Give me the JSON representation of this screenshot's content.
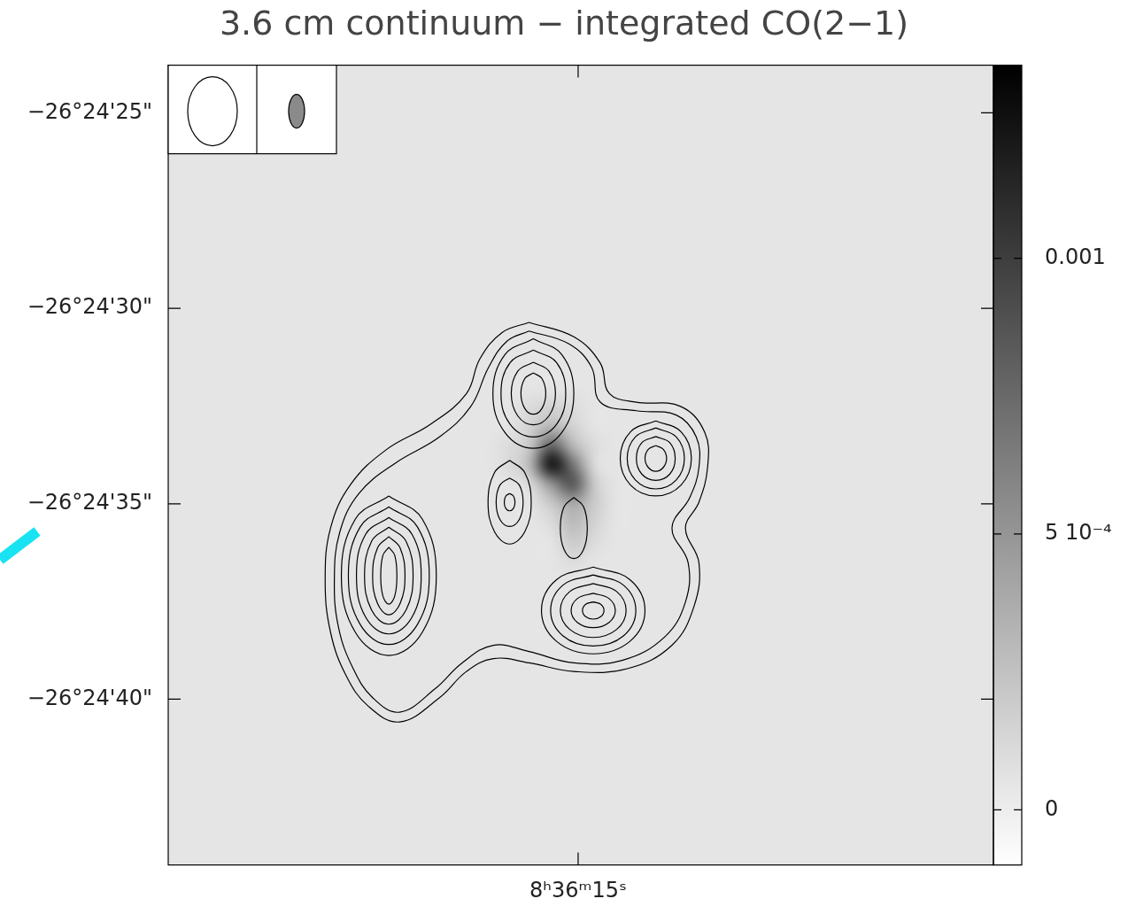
{
  "chart_data": {
    "type": "contour_image",
    "title": "3.6 cm continuum − integrated CO(2−1)",
    "xlim": [
      14.23,
      15.76
    ],
    "ylim": [
      23.78,
      44.24
    ],
    "xticks": [
      {
        "value": 15,
        "label": "8ʰ36ᵐ15ˢ"
      }
    ],
    "yticks": [
      {
        "value": 25,
        "label": "−26°24'25\""
      },
      {
        "value": 30,
        "label": "−26°24'30\""
      },
      {
        "value": 35,
        "label": "−26°24'35\""
      },
      {
        "value": 40,
        "label": "−26°24'40\""
      }
    ],
    "grid": false,
    "image": {
      "x": [
        15.17,
        15.13,
        15.09,
        15.05,
        15.01,
        14.97,
        14.93,
        14.89
      ],
      "y": [
        32.0,
        32.5,
        33.0,
        33.5,
        34.0,
        34.5,
        35.0,
        35.5,
        36.0,
        36.5,
        37.0
      ],
      "background": 5e-05,
      "values": [
        [
          5e-05,
          5e-05,
          5e-05,
          5e-05,
          5e-05,
          5e-05,
          5e-05,
          5e-05
        ],
        [
          5e-05,
          5e-05,
          0.0001,
          0.00015,
          0.0001,
          5e-05,
          5e-05,
          5e-05
        ],
        [
          5e-05,
          5e-05,
          0.00015,
          0.0003,
          0.00015,
          5e-05,
          5e-05,
          5e-05
        ],
        [
          5e-05,
          0.0001,
          0.0002,
          0.0008,
          0.0003,
          0.0001,
          5e-05,
          5e-05
        ],
        [
          5e-05,
          0.0001,
          0.0003,
          0.0013,
          0.0007,
          0.0001,
          5e-05,
          5e-05
        ],
        [
          5e-05,
          5e-05,
          0.0001,
          0.0005,
          0.0009,
          0.0002,
          5e-05,
          5e-05
        ],
        [
          5e-05,
          5e-05,
          5e-05,
          0.0002,
          0.0004,
          0.0002,
          5e-05,
          5e-05
        ],
        [
          5e-05,
          5e-05,
          5e-05,
          0.0001,
          0.0003,
          0.00015,
          5e-05,
          5e-05
        ],
        [
          5e-05,
          5e-05,
          5e-05,
          5e-05,
          0.0002,
          0.0001,
          5e-05,
          5e-05
        ],
        [
          5e-05,
          5e-05,
          5e-05,
          5e-05,
          0.0001,
          5e-05,
          5e-05,
          5e-05
        ],
        [
          5e-05,
          5e-05,
          5e-05,
          5e-05,
          5e-05,
          5e-05,
          5e-05,
          5e-05
        ]
      ],
      "colorbar": {
        "range": [
          -0.0001,
          0.00135
        ],
        "ticks": [
          0,
          {
            "value": 0.0005,
            "label": "5 10⁻⁴"
          },
          0.001
        ]
      }
    },
    "contours": [
      [
        [
          15.091,
          30.36
        ],
        [
          15.008,
          30.73
        ],
        [
          14.959,
          31.4
        ],
        [
          14.942,
          32.18
        ],
        [
          14.892,
          32.4
        ],
        [
          14.81,
          32.51
        ],
        [
          14.765,
          33.18
        ],
        [
          14.76,
          34.07
        ],
        [
          14.776,
          34.96
        ],
        [
          14.801,
          35.62
        ],
        [
          14.776,
          36.51
        ],
        [
          14.785,
          37.62
        ],
        [
          14.826,
          38.62
        ],
        [
          14.909,
          39.22
        ],
        [
          15.008,
          39.29
        ],
        [
          15.091,
          39.07
        ],
        [
          15.157,
          38.96
        ],
        [
          15.207,
          39.29
        ],
        [
          15.257,
          39.96
        ],
        [
          15.331,
          40.58
        ],
        [
          15.389,
          40.18
        ],
        [
          15.43,
          39.4
        ],
        [
          15.459,
          38.29
        ],
        [
          15.469,
          36.96
        ],
        [
          15.459,
          35.62
        ],
        [
          15.422,
          34.51
        ],
        [
          15.356,
          33.62
        ],
        [
          15.273,
          32.96
        ],
        [
          15.207,
          32.18
        ],
        [
          15.182,
          31.29
        ],
        [
          15.141,
          30.62
        ]
      ],
      [
        [
          15.091,
          30.58
        ],
        [
          15.017,
          30.91
        ],
        [
          14.975,
          31.51
        ],
        [
          14.959,
          32.4
        ],
        [
          14.892,
          32.62
        ],
        [
          14.818,
          32.73
        ],
        [
          14.781,
          33.29
        ],
        [
          14.776,
          34.07
        ],
        [
          14.793,
          34.84
        ],
        [
          14.826,
          35.62
        ],
        [
          14.796,
          36.51
        ],
        [
          14.801,
          37.51
        ],
        [
          14.839,
          38.4
        ],
        [
          14.917,
          39.0
        ],
        [
          15.008,
          39.07
        ],
        [
          15.091,
          38.78
        ],
        [
          15.157,
          38.62
        ],
        [
          15.215,
          39.07
        ],
        [
          15.265,
          39.73
        ],
        [
          15.331,
          40.33
        ],
        [
          15.381,
          39.96
        ],
        [
          15.417,
          39.22
        ],
        [
          15.444,
          38.18
        ],
        [
          15.452,
          36.96
        ],
        [
          15.442,
          35.73
        ],
        [
          15.406,
          34.73
        ],
        [
          15.339,
          33.96
        ],
        [
          15.257,
          33.29
        ],
        [
          15.199,
          32.51
        ],
        [
          15.166,
          31.51
        ],
        [
          15.132,
          30.84
        ]
      ],
      [
        [
          15.351,
          36.11
        ],
        [
          15.34,
          36.32
        ],
        [
          15.336,
          36.84
        ],
        [
          15.34,
          37.36
        ],
        [
          15.351,
          37.57
        ],
        [
          15.362,
          37.36
        ],
        [
          15.366,
          36.84
        ],
        [
          15.362,
          36.32
        ]
      ],
      [
        [
          15.351,
          35.84
        ],
        [
          15.33,
          36.13
        ],
        [
          15.321,
          36.84
        ],
        [
          15.33,
          37.55
        ],
        [
          15.351,
          37.84
        ],
        [
          15.372,
          37.55
        ],
        [
          15.381,
          36.84
        ],
        [
          15.372,
          36.13
        ]
      ],
      [
        [
          15.351,
          35.6
        ],
        [
          15.319,
          35.96
        ],
        [
          15.306,
          36.84
        ],
        [
          15.319,
          37.72
        ],
        [
          15.351,
          38.08
        ],
        [
          15.383,
          37.72
        ],
        [
          15.396,
          36.84
        ],
        [
          15.383,
          35.96
        ]
      ],
      [
        [
          15.351,
          35.35
        ],
        [
          15.308,
          35.78
        ],
        [
          15.291,
          36.84
        ],
        [
          15.308,
          37.9
        ],
        [
          15.351,
          38.33
        ],
        [
          15.394,
          37.9
        ],
        [
          15.411,
          36.84
        ],
        [
          15.394,
          35.78
        ]
      ],
      [
        [
          15.351,
          35.08
        ],
        [
          15.298,
          35.59
        ],
        [
          15.276,
          36.84
        ],
        [
          15.298,
          38.09
        ],
        [
          15.351,
          38.6
        ],
        [
          15.404,
          38.09
        ],
        [
          15.426,
          36.84
        ],
        [
          15.404,
          35.59
        ]
      ],
      [
        [
          15.351,
          34.8
        ],
        [
          15.289,
          35.39
        ],
        [
          15.263,
          36.84
        ],
        [
          15.289,
          38.29
        ],
        [
          15.351,
          38.88
        ],
        [
          15.413,
          38.29
        ],
        [
          15.439,
          36.84
        ],
        [
          15.413,
          35.39
        ]
      ],
      [
        [
          15.083,
          31.65
        ],
        [
          15.067,
          31.8
        ],
        [
          15.06,
          32.18
        ],
        [
          15.067,
          32.56
        ],
        [
          15.083,
          32.71
        ],
        [
          15.099,
          32.56
        ],
        [
          15.106,
          32.18
        ],
        [
          15.099,
          31.8
        ]
      ],
      [
        [
          15.083,
          31.38
        ],
        [
          15.054,
          31.61
        ],
        [
          15.042,
          32.18
        ],
        [
          15.054,
          32.75
        ],
        [
          15.083,
          32.98
        ],
        [
          15.112,
          32.75
        ],
        [
          15.124,
          32.18
        ],
        [
          15.112,
          31.61
        ]
      ],
      [
        [
          15.083,
          31.07
        ],
        [
          15.04,
          31.39
        ],
        [
          15.023,
          32.18
        ],
        [
          15.04,
          32.97
        ],
        [
          15.083,
          33.29
        ],
        [
          15.126,
          32.97
        ],
        [
          15.143,
          32.18
        ],
        [
          15.126,
          31.39
        ]
      ],
      [
        [
          15.083,
          30.78
        ],
        [
          15.03,
          31.19
        ],
        [
          15.008,
          32.18
        ],
        [
          15.03,
          33.17
        ],
        [
          15.083,
          33.58
        ],
        [
          15.136,
          33.17
        ],
        [
          15.158,
          32.18
        ],
        [
          15.136,
          31.19
        ]
      ],
      [
        [
          14.856,
          33.51
        ],
        [
          14.842,
          33.61
        ],
        [
          14.836,
          33.84
        ],
        [
          14.842,
          34.07
        ],
        [
          14.856,
          34.17
        ],
        [
          14.87,
          34.07
        ],
        [
          14.876,
          33.84
        ],
        [
          14.87,
          33.61
        ]
      ],
      [
        [
          14.856,
          33.28
        ],
        [
          14.83,
          33.44
        ],
        [
          14.82,
          33.84
        ],
        [
          14.83,
          34.24
        ],
        [
          14.856,
          34.4
        ],
        [
          14.882,
          34.24
        ],
        [
          14.892,
          33.84
        ],
        [
          14.882,
          33.44
        ]
      ],
      [
        [
          14.856,
          33.06
        ],
        [
          14.818,
          33.29
        ],
        [
          14.803,
          33.84
        ],
        [
          14.818,
          34.39
        ],
        [
          14.856,
          34.62
        ],
        [
          14.894,
          34.39
        ],
        [
          14.909,
          33.84
        ],
        [
          14.894,
          33.29
        ]
      ],
      [
        [
          14.856,
          32.88
        ],
        [
          14.809,
          33.16
        ],
        [
          14.79,
          33.84
        ],
        [
          14.809,
          34.52
        ],
        [
          14.856,
          34.8
        ],
        [
          14.903,
          34.52
        ],
        [
          14.922,
          33.84
        ],
        [
          14.903,
          33.16
        ]
      ],
      [
        [
          14.972,
          37.51
        ],
        [
          14.958,
          37.57
        ],
        [
          14.952,
          37.73
        ],
        [
          14.958,
          37.89
        ],
        [
          14.972,
          37.95
        ],
        [
          14.986,
          37.89
        ],
        [
          14.992,
          37.73
        ],
        [
          14.986,
          37.57
        ]
      ],
      [
        [
          14.972,
          37.29
        ],
        [
          14.943,
          37.42
        ],
        [
          14.931,
          37.73
        ],
        [
          14.943,
          38.04
        ],
        [
          14.972,
          38.17
        ],
        [
          15.001,
          38.04
        ],
        [
          15.013,
          37.73
        ],
        [
          15.001,
          37.42
        ]
      ],
      [
        [
          14.972,
          37.04
        ],
        [
          14.929,
          37.24
        ],
        [
          14.911,
          37.73
        ],
        [
          14.929,
          38.22
        ],
        [
          14.972,
          38.42
        ],
        [
          15.015,
          38.22
        ],
        [
          15.033,
          37.73
        ],
        [
          15.015,
          37.24
        ]
      ],
      [
        [
          14.972,
          36.82
        ],
        [
          14.916,
          37.08
        ],
        [
          14.893,
          37.73
        ],
        [
          14.916,
          38.38
        ],
        [
          14.972,
          38.64
        ],
        [
          15.028,
          38.38
        ],
        [
          15.051,
          37.73
        ],
        [
          15.028,
          37.08
        ]
      ],
      [
        [
          14.972,
          36.62
        ],
        [
          14.904,
          36.94
        ],
        [
          14.876,
          37.73
        ],
        [
          14.904,
          38.52
        ],
        [
          14.972,
          38.84
        ],
        [
          15.04,
          38.52
        ],
        [
          15.068,
          37.73
        ],
        [
          15.04,
          36.94
        ]
      ],
      [
        [
          15.127,
          34.74
        ],
        [
          15.12,
          34.8
        ],
        [
          15.117,
          34.96
        ],
        [
          15.12,
          35.12
        ],
        [
          15.127,
          35.18
        ],
        [
          15.134,
          35.12
        ],
        [
          15.137,
          34.96
        ],
        [
          15.134,
          34.8
        ]
      ],
      [
        [
          15.127,
          34.34
        ],
        [
          15.109,
          34.52
        ],
        [
          15.102,
          34.96
        ],
        [
          15.109,
          35.4
        ],
        [
          15.127,
          35.58
        ],
        [
          15.145,
          35.4
        ],
        [
          15.152,
          34.96
        ],
        [
          15.145,
          34.52
        ]
      ],
      [
        [
          15.127,
          33.89
        ],
        [
          15.099,
          34.2
        ],
        [
          15.087,
          34.96
        ],
        [
          15.099,
          35.72
        ],
        [
          15.127,
          36.03
        ],
        [
          15.155,
          35.72
        ],
        [
          15.167,
          34.96
        ],
        [
          15.155,
          34.2
        ]
      ],
      [
        [
          15.008,
          34.84
        ],
        [
          14.99,
          35.07
        ],
        [
          14.983,
          35.62
        ],
        [
          14.99,
          36.17
        ],
        [
          15.008,
          36.4
        ],
        [
          15.026,
          36.17
        ],
        [
          15.033,
          35.62
        ],
        [
          15.026,
          35.07
        ]
      ]
    ]
  }
}
